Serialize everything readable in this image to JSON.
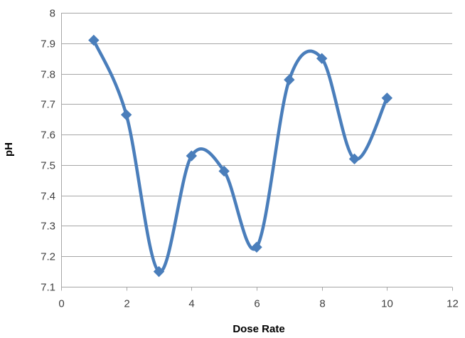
{
  "chart_data": {
    "type": "scatter",
    "title": "",
    "xlabel": "Dose Rate",
    "ylabel": "pH",
    "xlim": [
      0,
      12
    ],
    "ylim": [
      7.1,
      8
    ],
    "xticks": [
      "0",
      "2",
      "4",
      "6",
      "8",
      "10",
      "12"
    ],
    "yticks": [
      "7.1",
      "7.2",
      "7.3",
      "7.4",
      "7.5",
      "7.6",
      "7.7",
      "7.8",
      "7.9",
      "8"
    ],
    "grid": "horizontal",
    "legend": "none",
    "line_style": "smooth",
    "marker": "diamond",
    "color": "#4a7ebb",
    "series": [
      {
        "x": [
          1,
          2,
          3,
          4,
          5,
          6,
          7,
          8,
          9,
          10
        ],
        "y": [
          7.91,
          7.665,
          7.15,
          7.53,
          7.48,
          7.23,
          7.78,
          7.85,
          7.52,
          7.72
        ]
      }
    ]
  }
}
